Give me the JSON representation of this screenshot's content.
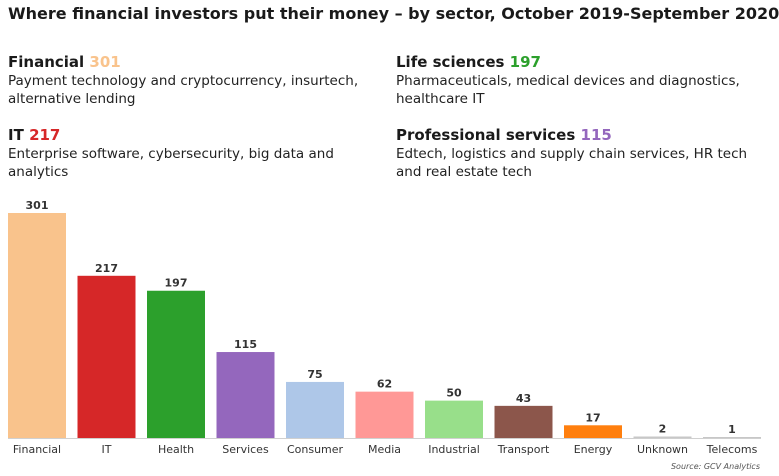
{
  "title": "Where financial investors put their money – by sector, October 2019-September 2020",
  "highlights": [
    {
      "name": "Financial",
      "value": "301",
      "color": "#f9c38c",
      "desc": "Payment technology and cryptocurrency, insurtech, alternative lending"
    },
    {
      "name": "Life sciences",
      "value": "197",
      "color": "#2ca02c",
      "desc": "Pharmaceuticals, medical devices and diagnostics, healthcare IT"
    },
    {
      "name": "IT",
      "value": "217",
      "color": "#d62728",
      "desc": "Enterprise software, cybersecurity, big data and analytics"
    },
    {
      "name": "Professional services",
      "value": "115",
      "color": "#9467bd",
      "desc": "Edtech, logistics and supply chain services, HR tech and real estate tech"
    }
  ],
  "chart_data": {
    "type": "bar",
    "categories": [
      "Financial",
      "IT",
      "Health",
      "Services",
      "Consumer",
      "Media",
      "Industrial",
      "Transport",
      "Energy",
      "Unknown",
      "Telecoms"
    ],
    "values": [
      301,
      217,
      197,
      115,
      75,
      62,
      50,
      43,
      17,
      2,
      1
    ],
    "colors": [
      "#f9c38c",
      "#d62728",
      "#2ca02c",
      "#9467bd",
      "#aec7e8",
      "#ff9896",
      "#98df8a",
      "#8c564b",
      "#ff7f0e",
      "#c7c7c7",
      "#c7c7c7"
    ],
    "ylim": [
      0,
      301
    ],
    "grid": false,
    "legend": "none"
  },
  "source": "Source: GCV Analytics"
}
